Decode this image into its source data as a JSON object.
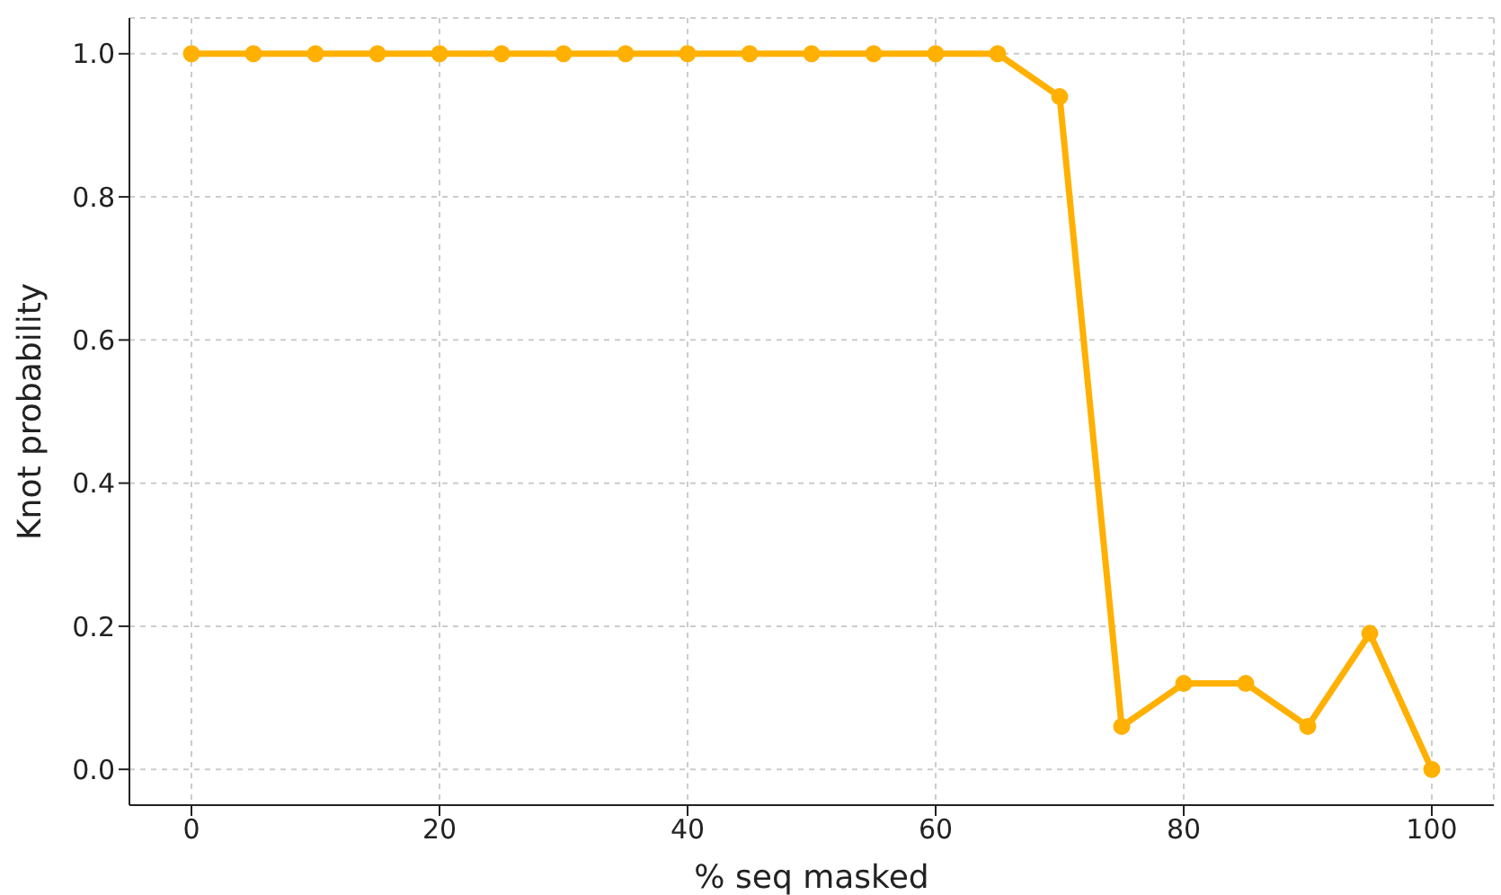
{
  "chart_data": {
    "type": "line",
    "xlabel": "% seq masked",
    "ylabel": "Knot probability",
    "x": [
      0,
      5,
      10,
      15,
      20,
      25,
      30,
      35,
      40,
      45,
      50,
      55,
      60,
      65,
      70,
      75,
      80,
      85,
      90,
      95,
      100
    ],
    "series": [
      {
        "color": "#ffb000",
        "values": [
          1,
          1,
          1,
          1,
          1,
          1,
          1,
          1,
          1,
          1,
          1,
          1,
          1,
          1,
          0.94,
          0.06,
          0.12,
          0.12,
          0.06,
          0.19,
          0
        ]
      }
    ],
    "xlim": [
      -5,
      105
    ],
    "xticks": [
      0,
      20,
      40,
      60,
      80,
      100
    ],
    "ylim": [
      -0.05,
      1.05
    ],
    "yticks": [
      {
        "value": 0,
        "label": "0.0"
      },
      0.2,
      0.4,
      0.6,
      0.8,
      {
        "value": 1,
        "label": "1.0"
      }
    ],
    "grid": true,
    "marker": "circle",
    "line_style": "solid"
  }
}
